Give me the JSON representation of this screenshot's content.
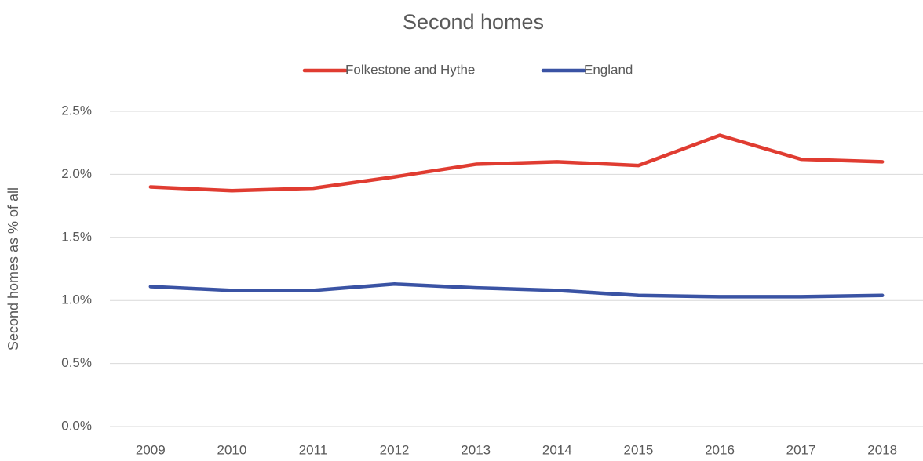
{
  "chart_data": {
    "type": "line",
    "title": "Second homes",
    "y_label": "Second homes as % of all",
    "categories": [
      "2009",
      "2010",
      "2011",
      "2012",
      "2013",
      "2014",
      "2015",
      "2016",
      "2017",
      "2018"
    ],
    "series": [
      {
        "name": "Folkestone and Hythe",
        "color": "#e03c31",
        "values": [
          1.9,
          1.87,
          1.89,
          1.98,
          2.08,
          2.1,
          2.07,
          2.31,
          2.12,
          2.1
        ]
      },
      {
        "name": "England",
        "color": "#3a53a4",
        "values": [
          1.11,
          1.08,
          1.08,
          1.13,
          1.1,
          1.08,
          1.04,
          1.03,
          1.03,
          1.04
        ]
      }
    ],
    "ylim": [
      0,
      2.5
    ],
    "yticks": [
      {
        "value": 0,
        "label": "0.0%"
      },
      {
        "value": 0.5,
        "label": "0.5%"
      },
      {
        "value": 1.0,
        "label": "1.0%"
      },
      {
        "value": 1.5,
        "label": "1.5%"
      },
      {
        "value": 2.0,
        "label": "2.0%"
      },
      {
        "value": 2.5,
        "label": "2.5%"
      }
    ],
    "grid": true,
    "legend": "top"
  }
}
